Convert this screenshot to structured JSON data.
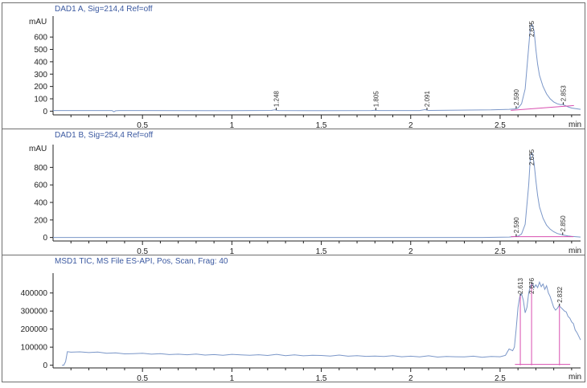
{
  "chart_data": [
    {
      "type": "line",
      "title": "DAD1 A, Sig=214,4 Ref=off",
      "ylabel": "mAU",
      "xlabel": "min",
      "xlim": [
        0,
        2.95
      ],
      "ylim": [
        -30,
        770
      ],
      "x_ticks": [
        0.5,
        1,
        1.5,
        2,
        2.5
      ],
      "x_tick_labels": [
        "0.5",
        "1",
        "1.5",
        "2",
        "2.5"
      ],
      "y_ticks": [
        0,
        100,
        200,
        300,
        400,
        500,
        600
      ],
      "y_tick_labels": [
        "0",
        "100",
        "200",
        "300",
        "400",
        "500",
        "600"
      ],
      "grid": false,
      "series": [
        {
          "x": [
            0.0,
            0.33,
            0.34,
            0.35,
            0.37,
            0.5,
            1.0,
            1.22,
            1.24,
            1.26,
            1.5,
            1.78,
            1.8,
            1.82,
            2.05,
            2.08,
            2.1,
            2.45,
            2.55,
            2.58,
            2.6,
            2.62,
            2.64,
            2.66,
            2.67,
            2.68,
            2.69,
            2.7,
            2.71,
            2.72,
            2.74,
            2.76,
            2.78,
            2.8,
            2.82,
            2.84,
            2.85,
            2.86,
            2.88,
            2.9,
            2.95
          ],
          "values": [
            5,
            5,
            -5,
            3,
            5,
            5,
            4,
            6,
            10,
            5,
            4,
            5,
            8,
            5,
            5,
            12,
            6,
            10,
            15,
            18,
            25,
            60,
            180,
            520,
            690,
            700,
            650,
            500,
            380,
            290,
            200,
            140,
            100,
            75,
            60,
            52,
            55,
            48,
            35,
            25,
            15
          ]
        }
      ],
      "peaks": [
        {
          "rt": 1.248,
          "label": "1.248"
        },
        {
          "rt": 1.805,
          "label": "1.805"
        },
        {
          "rt": 2.091,
          "label": "2.091"
        },
        {
          "rt": 2.59,
          "label": "2.590"
        },
        {
          "rt": 2.675,
          "label": "2.675"
        },
        {
          "rt": 2.853,
          "label": "2.853"
        }
      ]
    },
    {
      "type": "line",
      "title": "DAD1 B, Sig=254,4 Ref=off",
      "ylabel": "mAU",
      "xlabel": "min",
      "xlim": [
        0,
        2.95
      ],
      "ylim": [
        -40,
        1060
      ],
      "x_ticks": [
        0.5,
        1,
        1.5,
        2,
        2.5
      ],
      "x_tick_labels": [
        "0.5",
        "1",
        "1.5",
        "2",
        "2.5"
      ],
      "y_ticks": [
        0,
        200,
        400,
        600,
        800
      ],
      "y_tick_labels": [
        "0",
        "200",
        "400",
        "600",
        "800"
      ],
      "grid": false,
      "series": [
        {
          "x": [
            0.0,
            2.4,
            2.55,
            2.58,
            2.6,
            2.62,
            2.64,
            2.66,
            2.67,
            2.68,
            2.69,
            2.7,
            2.71,
            2.72,
            2.74,
            2.76,
            2.78,
            2.8,
            2.82,
            2.85,
            2.88,
            2.9,
            2.95
          ],
          "values": [
            0,
            0,
            5,
            10,
            15,
            40,
            150,
            600,
            940,
            960,
            850,
            650,
            480,
            350,
            220,
            140,
            95,
            65,
            45,
            30,
            18,
            12,
            5
          ]
        }
      ],
      "peaks": [
        {
          "rt": 2.59,
          "label": "2.590"
        },
        {
          "rt": 2.675,
          "label": "2.675"
        },
        {
          "rt": 2.85,
          "label": "2.850"
        }
      ]
    },
    {
      "type": "line",
      "title": "MSD1 TIC, MS File    ES-API, Pos, Scan, Frag: 40",
      "ylabel": "",
      "xlabel": "min",
      "xlim": [
        0,
        2.95
      ],
      "ylim": [
        -15000,
        510000
      ],
      "x_ticks": [
        0.5,
        1,
        1.5,
        2,
        2.5
      ],
      "x_tick_labels": [
        "0.5",
        "1",
        "1.5",
        "2",
        "2.5"
      ],
      "y_ticks": [
        0,
        100000,
        200000,
        300000,
        400000
      ],
      "y_tick_labels": [
        "0",
        "100000",
        "200000",
        "300000",
        "400000"
      ],
      "grid": false,
      "series": [
        {
          "x": [
            0.05,
            0.06,
            0.07,
            0.08,
            0.1,
            0.15,
            0.2,
            0.25,
            0.3,
            0.35,
            0.4,
            0.45,
            0.5,
            0.55,
            0.6,
            0.65,
            0.7,
            0.75,
            0.8,
            0.85,
            0.9,
            0.95,
            1.0,
            1.05,
            1.1,
            1.15,
            1.2,
            1.25,
            1.3,
            1.35,
            1.4,
            1.45,
            1.5,
            1.55,
            1.6,
            1.65,
            1.7,
            1.75,
            1.8,
            1.85,
            1.9,
            1.95,
            2.0,
            2.05,
            2.1,
            2.15,
            2.2,
            2.25,
            2.3,
            2.35,
            2.4,
            2.45,
            2.5,
            2.53,
            2.55,
            2.57,
            2.58,
            2.59,
            2.6,
            2.61,
            2.62,
            2.63,
            2.64,
            2.65,
            2.66,
            2.67,
            2.68,
            2.69,
            2.7,
            2.71,
            2.72,
            2.73,
            2.74,
            2.75,
            2.76,
            2.77,
            2.78,
            2.79,
            2.8,
            2.81,
            2.82,
            2.83,
            2.84,
            2.85,
            2.86,
            2.87,
            2.88,
            2.89,
            2.9,
            2.91,
            2.92,
            2.93,
            2.94,
            2.95
          ],
          "values": [
            0,
            0,
            20000,
            75000,
            72000,
            74000,
            70000,
            73000,
            66000,
            68000,
            63000,
            64000,
            66000,
            61000,
            64000,
            59000,
            61000,
            58000,
            62000,
            56000,
            59000,
            55000,
            60000,
            57000,
            55000,
            58000,
            54000,
            60000,
            53000,
            57000,
            52000,
            55000,
            54000,
            51000,
            56000,
            50000,
            53000,
            49000,
            51000,
            48000,
            53000,
            47000,
            50000,
            46000,
            52000,
            45000,
            48000,
            47000,
            46000,
            50000,
            44000,
            48000,
            47000,
            55000,
            90000,
            80000,
            100000,
            200000,
            320000,
            380000,
            395000,
            360000,
            290000,
            320000,
            400000,
            440000,
            455000,
            430000,
            445000,
            430000,
            460000,
            435000,
            450000,
            420000,
            440000,
            400000,
            380000,
            350000,
            320000,
            305000,
            315000,
            330000,
            320000,
            310000,
            300000,
            295000,
            270000,
            260000,
            240000,
            230000,
            195000,
            180000,
            160000,
            140000
          ]
        }
      ],
      "peaks": [
        {
          "rt": 2.613,
          "label": "2.613"
        },
        {
          "rt": 2.676,
          "label": "2.676"
        },
        {
          "rt": 2.832,
          "label": "2.832"
        }
      ]
    }
  ]
}
